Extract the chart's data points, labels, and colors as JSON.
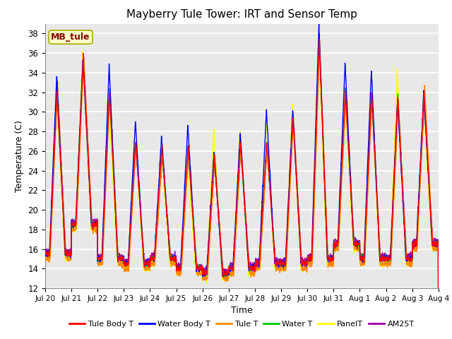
{
  "title": "Mayberry Tule Tower: IRT and Sensor Temp",
  "xlabel": "Time",
  "ylabel": "Temperature (C)",
  "ylim": [
    12,
    39
  ],
  "yticks": [
    12,
    14,
    16,
    18,
    20,
    22,
    24,
    26,
    28,
    30,
    32,
    34,
    36,
    38
  ],
  "legend_labels": [
    "Tule Body T",
    "Water Body T",
    "Tule T",
    "Water T",
    "PanelT",
    "AM25T"
  ],
  "legend_colors": [
    "#ff0000",
    "#0000ff",
    "#ff8800",
    "#00cc00",
    "#ffff00",
    "#9900aa"
  ],
  "annotation_text": "MB_tule",
  "annotation_color": "#880000",
  "annotation_bg": "#ffffcc",
  "annotation_edge": "#aaaa00",
  "background_color": "#e8e8e8",
  "grid_color": "#ffffff",
  "xtick_labels": [
    "Jul 20",
    "Jul 21",
    "Jul 22",
    "Jul 23",
    "Jul 24",
    "Jul 25",
    "Jul 26",
    "Jul 27",
    "Jul 28",
    "Jul 29",
    "Jul 30",
    "Jul 31",
    "Aug 1",
    "Aug 2",
    "Aug 3",
    "Aug 4"
  ],
  "day_peak_heights": [
    32.0,
    35.5,
    32.0,
    27.0,
    26.5,
    26.5,
    25.5,
    27.0,
    27.0,
    29.5,
    37.5,
    32.0,
    32.0,
    31.5,
    32.0
  ],
  "day_min_temps": [
    15.5,
    18.5,
    15.0,
    14.5,
    15.0,
    14.0,
    13.5,
    14.0,
    14.5,
    14.5,
    15.0,
    16.5,
    15.0,
    15.0,
    16.5
  ]
}
